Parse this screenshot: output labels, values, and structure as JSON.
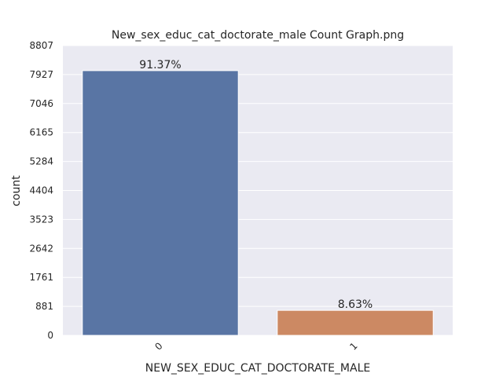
{
  "chart_data": {
    "type": "bar",
    "title": "New_sex_educ_cat_doctorate_male Count Graph.png",
    "xlabel": "NEW_SEX_EDUC_CAT_DOCTORATE_MALE",
    "ylabel": "count",
    "categories": [
      "0",
      "1"
    ],
    "values": [
      8045,
      760
    ],
    "data_labels": [
      "91.37%",
      "8.63%"
    ],
    "ylim": [
      0,
      8807
    ],
    "yticks": [
      0,
      881,
      1761,
      2642,
      3523,
      4404,
      5284,
      6165,
      7046,
      7927,
      8807
    ],
    "colors": [
      "#5975a4",
      "#cc8963"
    ],
    "plot_background": "#eaeaf2",
    "grid": true
  }
}
